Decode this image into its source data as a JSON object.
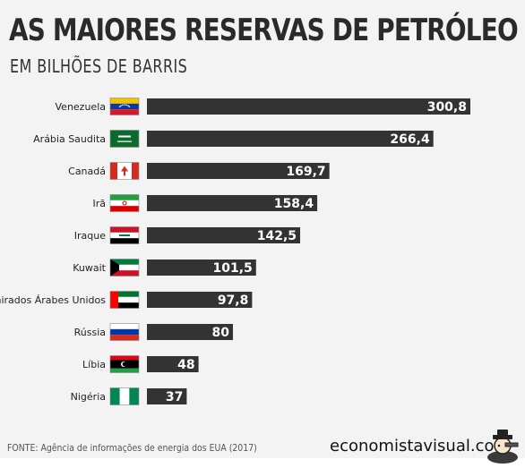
{
  "chart_data": {
    "type": "bar",
    "orientation": "horizontal",
    "title": "AS MAIORES RESERVAS DE PETRÓLEO",
    "subtitle": "EM BILHÕES DE BARRIS",
    "categories": [
      "Venezuela",
      "Arábia Saudita",
      "Canadá",
      "Irã",
      "Iraque",
      "Kuwait",
      "Emirados Árabes Unidos",
      "Rússia",
      "Líbia",
      "Nigéria"
    ],
    "values": [
      300.8,
      266.4,
      169.7,
      158.4,
      142.5,
      101.5,
      97.8,
      80,
      48,
      37
    ],
    "value_labels": [
      "300,8",
      "266,4",
      "169,7",
      "158,4",
      "142,5",
      "101,5",
      "97,8",
      "80",
      "48",
      "37"
    ],
    "flag_icons": [
      "venezuela-flag-icon",
      "saudi-arabia-flag-icon",
      "canada-flag-icon",
      "iran-flag-icon",
      "iraq-flag-icon",
      "kuwait-flag-icon",
      "uae-flag-icon",
      "russia-flag-icon",
      "libya-flag-icon",
      "nigeria-flag-icon"
    ],
    "xlim": [
      0,
      300.8
    ],
    "grid": false,
    "legend": "none",
    "bar_color": "#333333",
    "value_label_color": "#ffffff"
  },
  "footer": {
    "source": "FONTE: Agência de informações de energia dos EUA (2017)",
    "brand": "economistavisual.com"
  }
}
